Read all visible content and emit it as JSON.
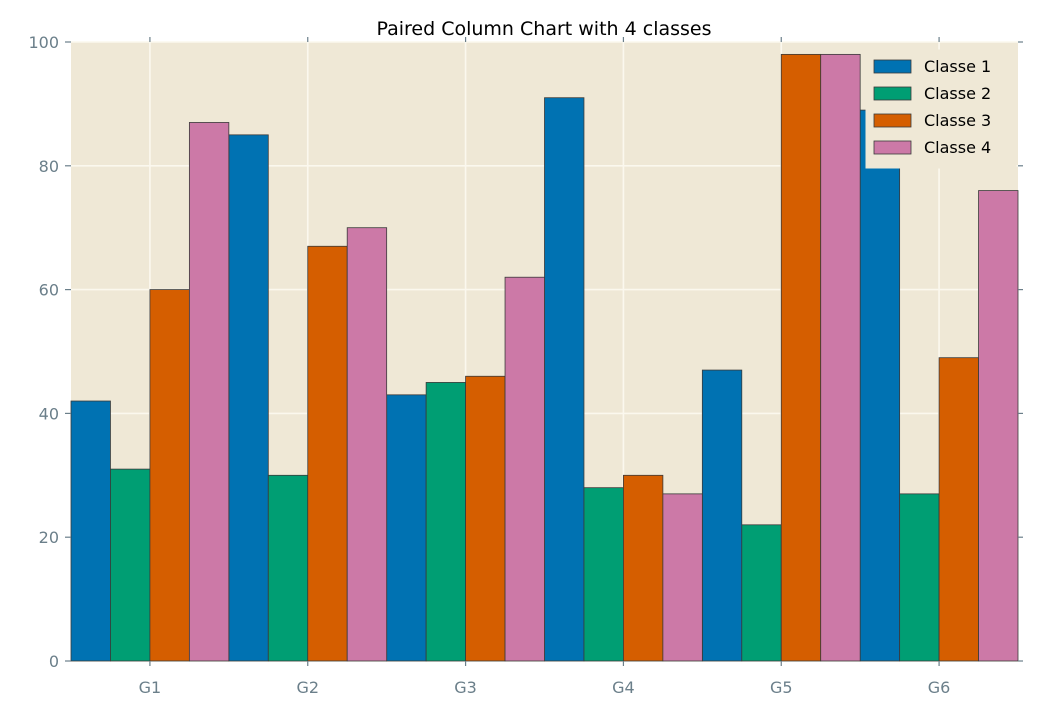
{
  "chart_data": {
    "type": "bar",
    "title": "Paired Column Chart with 4 classes",
    "xlabel": "",
    "ylabel": "",
    "categories": [
      "G1",
      "G2",
      "G3",
      "G4",
      "G5",
      "G6"
    ],
    "ylim": [
      0,
      100
    ],
    "yticks": [
      0,
      20,
      40,
      60,
      80,
      100
    ],
    "grid": true,
    "legend_position": "top-right",
    "background": "#efe8d6",
    "series": [
      {
        "name": "Classe 1",
        "color": "#0072b2",
        "values": [
          42,
          85,
          43,
          91,
          47,
          89
        ]
      },
      {
        "name": "Classe 2",
        "color": "#009e73",
        "values": [
          31,
          30,
          45,
          28,
          22,
          27
        ]
      },
      {
        "name": "Classe 3",
        "color": "#d55e00",
        "values": [
          60,
          67,
          46,
          30,
          98,
          49
        ]
      },
      {
        "name": "Classe 4",
        "color": "#cc79a7",
        "values": [
          87,
          70,
          62,
          27,
          98,
          76
        ]
      }
    ]
  }
}
